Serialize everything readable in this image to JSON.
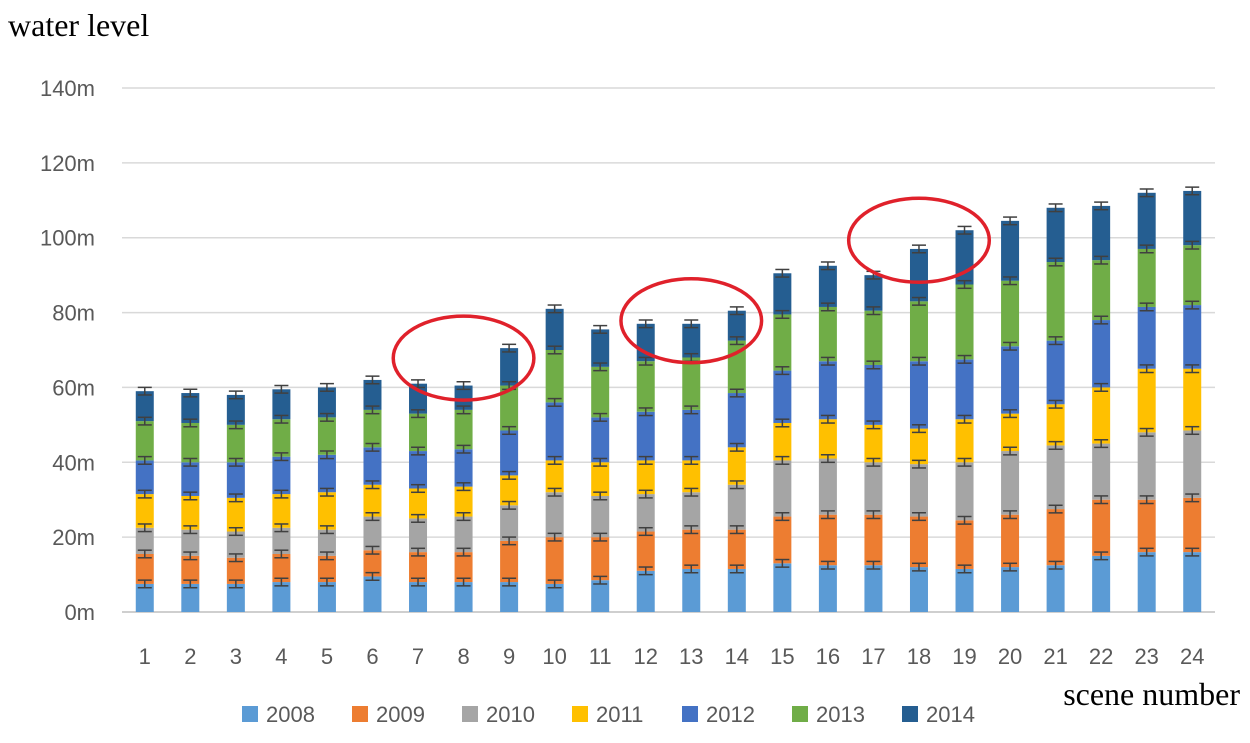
{
  "chart_data": {
    "type": "bar",
    "stacked": true,
    "ylabel": "water level",
    "xlabel": "scene number",
    "ylim": [
      0,
      140
    ],
    "y_ticks": [
      0,
      20,
      40,
      60,
      80,
      100,
      120,
      140
    ],
    "y_unit": "m",
    "grid": true,
    "legend_position": "bottom",
    "error_bars": true,
    "categories": [
      "1",
      "2",
      "3",
      "4",
      "5",
      "6",
      "7",
      "8",
      "9",
      "10",
      "11",
      "12",
      "13",
      "14",
      "15",
      "16",
      "17",
      "18",
      "19",
      "20",
      "21",
      "22",
      "23",
      "24"
    ],
    "series": [
      {
        "name": "2008",
        "color": "#5B9BD5",
        "values": [
          7.5,
          7.5,
          7.5,
          8,
          8,
          9.5,
          8,
          8,
          8,
          7.5,
          8.5,
          11,
          11.5,
          11.5,
          13,
          12.5,
          12.5,
          12,
          11.5,
          12,
          12.5,
          15,
          16,
          16
        ]
      },
      {
        "name": "2009",
        "color": "#ED7D31",
        "values": [
          8,
          7.5,
          7,
          7.5,
          7,
          7,
          8,
          8,
          11,
          12.5,
          11.5,
          10.5,
          10.5,
          10.5,
          12.5,
          13.5,
          13.5,
          13.5,
          13,
          14,
          15,
          15,
          14,
          14.5
        ]
      },
      {
        "name": "2010",
        "color": "#A5A5A5",
        "values": [
          7,
          7,
          7,
          7,
          7,
          9,
          9,
          9.5,
          9.5,
          12,
          11,
          10,
          10,
          12,
          15,
          15,
          14,
          14,
          15.5,
          17,
          17,
          15,
          18,
          18
        ]
      },
      {
        "name": "2011",
        "color": "#FFC000",
        "values": [
          9,
          9,
          9,
          9,
          10,
          8.5,
          8,
          8,
          8,
          8.5,
          9,
          9,
          8.5,
          10,
          10,
          10.5,
          10,
          9.5,
          11.5,
          10,
          11,
          15,
          17,
          16.5
        ]
      },
      {
        "name": "2012",
        "color": "#4472C4",
        "values": [
          9,
          9,
          9.5,
          10,
          10,
          10,
          10,
          10,
          12,
          15.5,
          12,
          13,
          13.5,
          14.5,
          14,
          15.5,
          16,
          18,
          16,
          18,
          17,
          18,
          16.5,
          17
        ]
      },
      {
        "name": "2013",
        "color": "#70AD47",
        "values": [
          10.5,
          10.5,
          10,
          10,
          10,
          10,
          10,
          10.5,
          12,
          14,
          13.5,
          13.5,
          14,
          14,
          15,
          14.5,
          14.5,
          16,
          20,
          17.5,
          21,
          16,
          15.5,
          16
        ]
      },
      {
        "name": "2014",
        "color": "#255E91",
        "values": [
          8,
          8,
          8,
          8,
          8,
          8,
          8,
          6.5,
          10,
          11,
          10,
          10,
          9,
          8,
          11,
          11,
          9.5,
          14,
          14.5,
          16,
          14.5,
          14.5,
          15,
          14.5
        ]
      }
    ]
  },
  "annotations": {
    "circle_color": "#E0212B",
    "circled_scenes": [
      [
        "7",
        "8",
        "9"
      ],
      [
        "12",
        "13",
        "14"
      ],
      [
        "17",
        "18",
        "19"
      ]
    ]
  }
}
